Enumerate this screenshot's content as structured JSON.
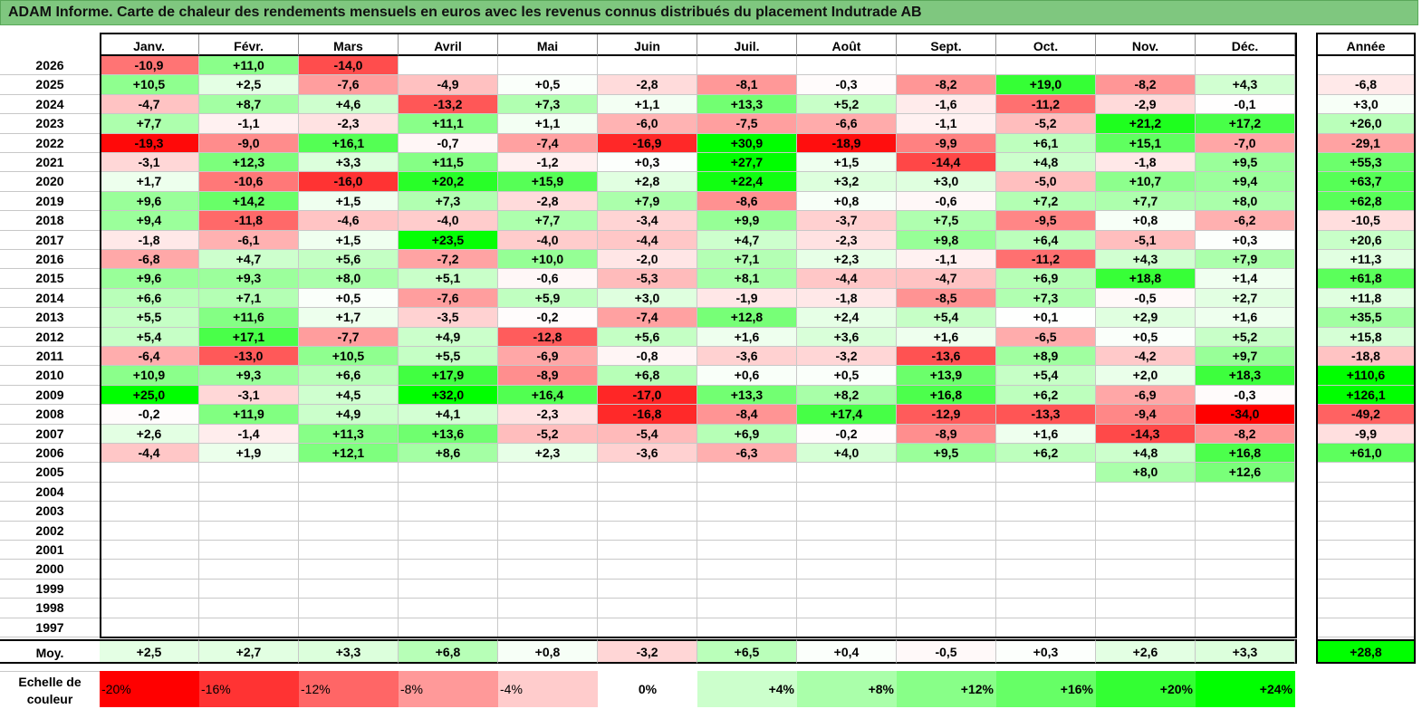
{
  "title": "ADAM Informe. Carte de chaleur des rendements mensuels en euros avec les revenus connus distribués du placement Indutrade AB",
  "chart_data": {
    "type": "heatmap",
    "title": "ADAM Informe. Carte de chaleur des rendements mensuels en euros avec les revenus connus distribués du placement Indutrade AB",
    "columns": [
      "Janv.",
      "Févr.",
      "Mars",
      "Avril",
      "Mai",
      "Juin",
      "Juil.",
      "Août",
      "Sept.",
      "Oct.",
      "Nov.",
      "Déc."
    ],
    "year_column": "Année",
    "rows": [
      {
        "year": "2026",
        "months": [
          "-10,9",
          "+11,0",
          "-14,0",
          "",
          "",
          "",
          "",
          "",
          "",
          "",
          "",
          ""
        ],
        "annual": ""
      },
      {
        "year": "2025",
        "months": [
          "+10,5",
          "+2,5",
          "-7,6",
          "-4,9",
          "+0,5",
          "-2,8",
          "-8,1",
          "-0,3",
          "-8,2",
          "+19,0",
          "-8,2",
          "+4,3"
        ],
        "annual": "-6,8"
      },
      {
        "year": "2024",
        "months": [
          "-4,7",
          "+8,7",
          "+4,6",
          "-13,2",
          "+7,3",
          "+1,1",
          "+13,3",
          "+5,2",
          "-1,6",
          "-11,2",
          "-2,9",
          "-0,1"
        ],
        "annual": "+3,0"
      },
      {
        "year": "2023",
        "months": [
          "+7,7",
          "-1,1",
          "-2,3",
          "+11,1",
          "+1,1",
          "-6,0",
          "-7,5",
          "-6,6",
          "-1,1",
          "-5,2",
          "+21,2",
          "+17,2"
        ],
        "annual": "+26,0"
      },
      {
        "year": "2022",
        "months": [
          "-19,3",
          "-9,0",
          "+16,1",
          "-0,7",
          "-7,4",
          "-16,9",
          "+30,9",
          "-18,9",
          "-9,9",
          "+6,1",
          "+15,1",
          "-7,0"
        ],
        "annual": "-29,1"
      },
      {
        "year": "2021",
        "months": [
          "-3,1",
          "+12,3",
          "+3,3",
          "+11,5",
          "-1,2",
          "+0,3",
          "+27,7",
          "+1,5",
          "-14,4",
          "+4,8",
          "-1,8",
          "+9,5"
        ],
        "annual": "+55,3"
      },
      {
        "year": "2020",
        "months": [
          "+1,7",
          "-10,6",
          "-16,0",
          "+20,2",
          "+15,9",
          "+2,8",
          "+22,4",
          "+3,2",
          "+3,0",
          "-5,0",
          "+10,7",
          "+9,4"
        ],
        "annual": "+63,7"
      },
      {
        "year": "2019",
        "months": [
          "+9,6",
          "+14,2",
          "+1,5",
          "+7,3",
          "-2,8",
          "+7,9",
          "-8,6",
          "+0,8",
          "-0,6",
          "+7,2",
          "+7,7",
          "+8,0"
        ],
        "annual": "+62,8"
      },
      {
        "year": "2018",
        "months": [
          "+9,4",
          "-11,8",
          "-4,6",
          "-4,0",
          "+7,7",
          "-3,4",
          "+9,9",
          "-3,7",
          "+7,5",
          "-9,5",
          "+0,8",
          "-6,2"
        ],
        "annual": "-10,5"
      },
      {
        "year": "2017",
        "months": [
          "-1,8",
          "-6,1",
          "+1,5",
          "+23,5",
          "-4,0",
          "-4,4",
          "+4,7",
          "-2,3",
          "+9,8",
          "+6,4",
          "-5,1",
          "+0,3"
        ],
        "annual": "+20,6"
      },
      {
        "year": "2016",
        "months": [
          "-6,8",
          "+4,7",
          "+5,6",
          "-7,2",
          "+10,0",
          "-2,0",
          "+7,1",
          "+2,3",
          "-1,1",
          "-11,2",
          "+4,3",
          "+7,9"
        ],
        "annual": "+11,3"
      },
      {
        "year": "2015",
        "months": [
          "+9,6",
          "+9,3",
          "+8,0",
          "+5,1",
          "-0,6",
          "-5,3",
          "+8,1",
          "-4,4",
          "-4,7",
          "+6,9",
          "+18,8",
          "+1,4"
        ],
        "annual": "+61,8"
      },
      {
        "year": "2014",
        "months": [
          "+6,6",
          "+7,1",
          "+0,5",
          "-7,6",
          "+5,9",
          "+3,0",
          "-1,9",
          "-1,8",
          "-8,5",
          "+7,3",
          "-0,5",
          "+2,7"
        ],
        "annual": "+11,8"
      },
      {
        "year": "2013",
        "months": [
          "+5,5",
          "+11,6",
          "+1,7",
          "-3,5",
          "-0,2",
          "-7,4",
          "+12,8",
          "+2,4",
          "+5,4",
          "+0,1",
          "+2,9",
          "+1,6"
        ],
        "annual": "+35,5"
      },
      {
        "year": "2012",
        "months": [
          "+5,4",
          "+17,1",
          "-7,7",
          "+4,9",
          "-12,8",
          "+5,6",
          "+1,6",
          "+3,6",
          "+1,6",
          "-6,5",
          "+0,5",
          "+5,2"
        ],
        "annual": "+15,8"
      },
      {
        "year": "2011",
        "months": [
          "-6,4",
          "-13,0",
          "+10,5",
          "+5,5",
          "-6,9",
          "-0,8",
          "-3,6",
          "-3,2",
          "-13,6",
          "+8,9",
          "-4,2",
          "+9,7"
        ],
        "annual": "-18,8"
      },
      {
        "year": "2010",
        "months": [
          "+10,9",
          "+9,3",
          "+6,6",
          "+17,9",
          "-8,9",
          "+6,8",
          "+0,6",
          "+0,5",
          "+13,9",
          "+5,4",
          "+2,0",
          "+18,3"
        ],
        "annual": "+110,6"
      },
      {
        "year": "2009",
        "months": [
          "+25,0",
          "-3,1",
          "+4,5",
          "+32,0",
          "+16,4",
          "-17,0",
          "+13,3",
          "+8,2",
          "+16,8",
          "+6,2",
          "-6,9",
          "-0,3"
        ],
        "annual": "+126,1"
      },
      {
        "year": "2008",
        "months": [
          "-0,2",
          "+11,9",
          "+4,9",
          "+4,1",
          "-2,3",
          "-16,8",
          "-8,4",
          "+17,4",
          "-12,9",
          "-13,3",
          "-9,4",
          "-34,0"
        ],
        "annual": "-49,2"
      },
      {
        "year": "2007",
        "months": [
          "+2,6",
          "-1,4",
          "+11,3",
          "+13,6",
          "-5,2",
          "-5,4",
          "+6,9",
          "-0,2",
          "-8,9",
          "+1,6",
          "-14,3",
          "-8,2"
        ],
        "annual": "-9,9"
      },
      {
        "year": "2006",
        "months": [
          "-4,4",
          "+1,9",
          "+12,1",
          "+8,6",
          "+2,3",
          "-3,6",
          "-6,3",
          "+4,0",
          "+9,5",
          "+6,2",
          "+4,8",
          "+16,8"
        ],
        "annual": "+61,0"
      },
      {
        "year": "2005",
        "months": [
          "",
          "",
          "",
          "",
          "",
          "",
          "",
          "",
          "",
          "",
          "+8,0",
          "+12,6"
        ],
        "annual": ""
      },
      {
        "year": "2004",
        "months": [
          "",
          "",
          "",
          "",
          "",
          "",
          "",
          "",
          "",
          "",
          "",
          ""
        ],
        "annual": ""
      },
      {
        "year": "2003",
        "months": [
          "",
          "",
          "",
          "",
          "",
          "",
          "",
          "",
          "",
          "",
          "",
          ""
        ],
        "annual": ""
      },
      {
        "year": "2002",
        "months": [
          "",
          "",
          "",
          "",
          "",
          "",
          "",
          "",
          "",
          "",
          "",
          ""
        ],
        "annual": ""
      },
      {
        "year": "2001",
        "months": [
          "",
          "",
          "",
          "",
          "",
          "",
          "",
          "",
          "",
          "",
          "",
          ""
        ],
        "annual": ""
      },
      {
        "year": "2000",
        "months": [
          "",
          "",
          "",
          "",
          "",
          "",
          "",
          "",
          "",
          "",
          "",
          ""
        ],
        "annual": ""
      },
      {
        "year": "1999",
        "months": [
          "",
          "",
          "",
          "",
          "",
          "",
          "",
          "",
          "",
          "",
          "",
          ""
        ],
        "annual": ""
      },
      {
        "year": "1998",
        "months": [
          "",
          "",
          "",
          "",
          "",
          "",
          "",
          "",
          "",
          "",
          "",
          ""
        ],
        "annual": ""
      },
      {
        "year": "1997",
        "months": [
          "",
          "",
          "",
          "",
          "",
          "",
          "",
          "",
          "",
          "",
          "",
          ""
        ],
        "annual": ""
      }
    ],
    "average": {
      "label": "Moy.",
      "months": [
        "+2,5",
        "+2,7",
        "+3,3",
        "+6,8",
        "+0,8",
        "-3,2",
        "+6,5",
        "+0,4",
        "-0,5",
        "+0,3",
        "+2,6",
        "+3,3"
      ],
      "annual": "+28,8"
    },
    "color_scale": {
      "label": "Echelle de couleur",
      "stops": [
        {
          "label": "-20%",
          "value": -20,
          "color": "#ff0000"
        },
        {
          "label": "-16%",
          "value": -16,
          "color": "#ff3333"
        },
        {
          "label": "-12%",
          "value": -12,
          "color": "#ff6666"
        },
        {
          "label": "-8%",
          "value": -8,
          "color": "#ff9999"
        },
        {
          "label": "-4%",
          "value": -4,
          "color": "#ffcccc"
        },
        {
          "label": "0%",
          "value": 0,
          "color": "#ffffff"
        },
        {
          "label": "+4%",
          "value": 4,
          "color": "#ccffcc"
        },
        {
          "label": "+8%",
          "value": 8,
          "color": "#aaffaa"
        },
        {
          "label": "+12%",
          "value": 12,
          "color": "#88ff88"
        },
        {
          "label": "+16%",
          "value": 16,
          "color": "#66ff66"
        },
        {
          "label": "+20%",
          "value": 20,
          "color": "#33ff33"
        },
        {
          "label": "+24%",
          "value": 24,
          "color": "#00ff00"
        }
      ]
    }
  }
}
